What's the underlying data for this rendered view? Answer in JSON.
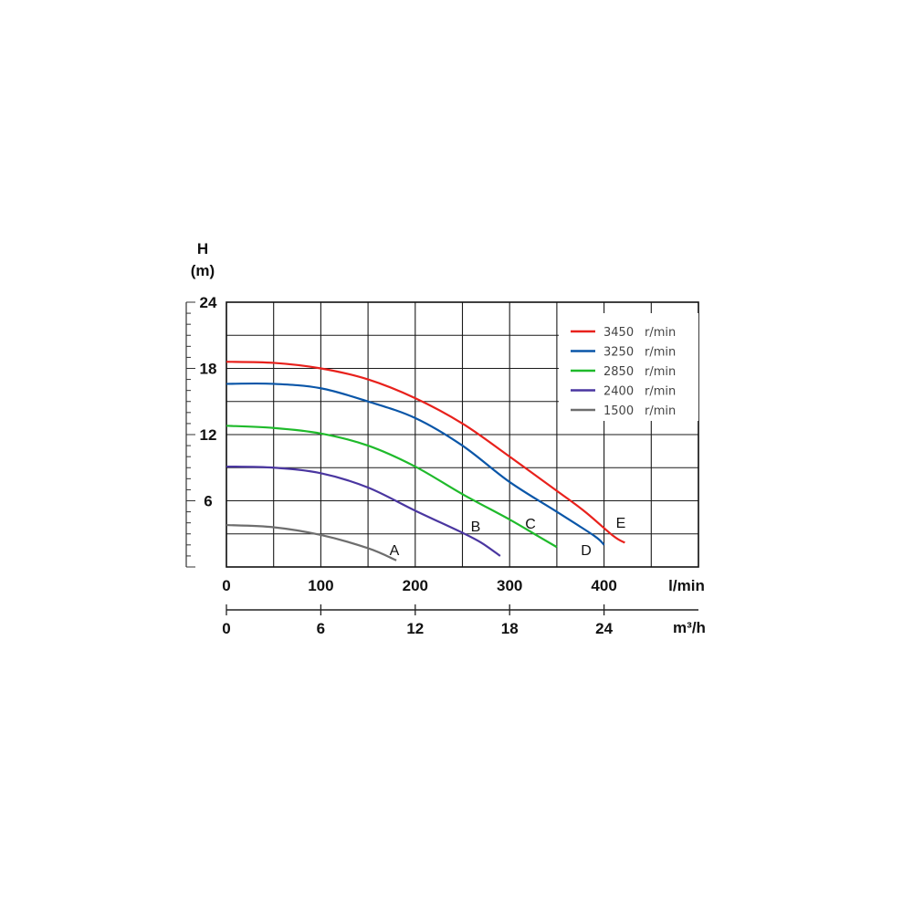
{
  "chart_data": {
    "type": "line",
    "y_title": "H",
    "y_unit": "(m)",
    "x_unit_primary": "l/min",
    "x_unit_secondary": "m³/h",
    "y_ticks": [
      "24",
      "18",
      "12",
      "6"
    ],
    "x_ticks_primary": [
      "0",
      "100",
      "200",
      "300",
      "400"
    ],
    "x_ticks_secondary": [
      "0",
      "6",
      "12",
      "18",
      "24"
    ],
    "ylim": [
      0,
      24
    ],
    "xlim": [
      0,
      500
    ],
    "grid": true,
    "legend_position": "top-right",
    "series": [
      {
        "name": "3450",
        "unit": "r/min",
        "color": "#e8211c",
        "curve_label": "E",
        "points": [
          [
            0,
            18.6
          ],
          [
            50,
            18.5
          ],
          [
            100,
            18.0
          ],
          [
            150,
            17.0
          ],
          [
            200,
            15.3
          ],
          [
            250,
            13.0
          ],
          [
            300,
            10.0
          ],
          [
            350,
            6.9
          ],
          [
            380,
            5.0
          ],
          [
            410,
            2.8
          ],
          [
            422,
            2.2
          ]
        ]
      },
      {
        "name": "3250",
        "unit": "r/min",
        "color": "#0a56a8",
        "curve_label": "D",
        "points": [
          [
            0,
            16.6
          ],
          [
            50,
            16.6
          ],
          [
            100,
            16.2
          ],
          [
            150,
            15.0
          ],
          [
            200,
            13.5
          ],
          [
            250,
            11.0
          ],
          [
            300,
            7.7
          ],
          [
            350,
            5.0
          ],
          [
            390,
            2.8
          ],
          [
            400,
            2.0
          ]
        ]
      },
      {
        "name": "2850",
        "unit": "r/min",
        "color": "#1fba2b",
        "curve_label": "C",
        "points": [
          [
            0,
            12.8
          ],
          [
            50,
            12.6
          ],
          [
            100,
            12.1
          ],
          [
            150,
            11.0
          ],
          [
            200,
            9.1
          ],
          [
            250,
            6.6
          ],
          [
            300,
            4.3
          ],
          [
            330,
            2.8
          ],
          [
            350,
            1.8
          ]
        ]
      },
      {
        "name": "2400",
        "unit": "r/min",
        "color": "#4a36a0",
        "curve_label": "B",
        "points": [
          [
            0,
            9.1
          ],
          [
            50,
            9.0
          ],
          [
            100,
            8.5
          ],
          [
            150,
            7.2
          ],
          [
            200,
            5.1
          ],
          [
            250,
            3.1
          ],
          [
            270,
            2.2
          ],
          [
            290,
            1.0
          ]
        ]
      },
      {
        "name": "1500",
        "unit": "r/min",
        "color": "#6e6e6e",
        "curve_label": "A",
        "points": [
          [
            0,
            3.8
          ],
          [
            50,
            3.6
          ],
          [
            100,
            2.9
          ],
          [
            150,
            1.7
          ],
          [
            180,
            0.6
          ]
        ]
      }
    ]
  }
}
